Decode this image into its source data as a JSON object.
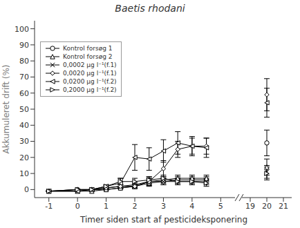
{
  "chart_data": [
    {
      "type": "line",
      "title": "Baetis rhodani",
      "xlabel": "Timer siden start af pesticideksponering",
      "ylabel": "Akkumuleret drift (%)",
      "x": [
        -1,
        0,
        0.5,
        1,
        1.5,
        2,
        2.5,
        3,
        3.5,
        4,
        4.5
      ],
      "xlim": [
        -1.5,
        5.5
      ],
      "xticks": [
        -1,
        0,
        1,
        2,
        3,
        4,
        5
      ],
      "ylim": [
        -5,
        105
      ],
      "yticks": [
        0,
        10,
        20,
        30,
        40,
        50,
        60,
        70,
        80,
        90,
        100
      ],
      "grid": false,
      "legend": "upper left",
      "series": [
        {
          "name": "Kontrol forsøg 1",
          "color": "#000000",
          "marker": "circle",
          "line_style": "solid",
          "values": [
            -1,
            0,
            0,
            0,
            1,
            2,
            4,
            5,
            6,
            6,
            6
          ],
          "errors": [
            0.3,
            0.3,
            0.3,
            0.3,
            0.5,
            1,
            1.5,
            2,
            2,
            2,
            2
          ]
        },
        {
          "name": "Kontrol forsøg 2",
          "color": "#000000",
          "marker": "triangle-up",
          "line_style": "solid",
          "values": [
            -1,
            -1,
            -1,
            0,
            1,
            2,
            5,
            6,
            7,
            7,
            7
          ],
          "errors": [
            0.3,
            0.3,
            0.3,
            0.3,
            0.5,
            1,
            2,
            2,
            2,
            2,
            2
          ]
        },
        {
          "name": "0,0002 µg l⁻¹(f.1)",
          "color": "#000000",
          "marker": "x",
          "line_style": "solid",
          "values": [
            -1,
            -1,
            0,
            1,
            2,
            3,
            5,
            5,
            5,
            5,
            5
          ],
          "errors": [
            0.3,
            0.3,
            0.3,
            0.5,
            1,
            1.5,
            2,
            2,
            2,
            2,
            2
          ]
        },
        {
          "name": "0,0020 µg l⁻¹(f.1)",
          "color": "#000000",
          "marker": "diamond",
          "line_style": "solid",
          "values": [
            -1,
            0,
            0,
            1,
            2,
            2,
            5,
            13,
            25,
            27,
            27
          ],
          "errors": [
            0.3,
            0.3,
            0.3,
            0.5,
            1,
            1.5,
            3,
            5,
            5,
            5,
            5
          ]
        },
        {
          "name": "0,0200 µg l⁻¹(f.2)",
          "color": "#000000",
          "marker": "triangle-left",
          "line_style": "solid",
          "values": [
            -1,
            -1,
            0,
            2,
            4,
            20,
            19,
            24,
            29,
            27,
            26
          ],
          "errors": [
            0.3,
            0.3,
            0.3,
            1,
            3,
            8,
            7,
            7,
            7,
            6,
            6
          ]
        },
        {
          "name": "0,2000 µg l⁻¹(f.2)",
          "color": "#000000",
          "marker": "triangle-right",
          "line_style": "solid",
          "values": [
            -1,
            0,
            0,
            2,
            5,
            5,
            6,
            7,
            5,
            5,
            4
          ],
          "errors": [
            0.3,
            0.3,
            0.3,
            0.5,
            2,
            2,
            2,
            2,
            2,
            2,
            2
          ]
        }
      ]
    },
    {
      "type": "line",
      "x": [
        20
      ],
      "xlim": [
        18.5,
        21.5
      ],
      "xticks": [
        19,
        20,
        21
      ],
      "ylim": [
        -5,
        105
      ],
      "yticks": [
        0,
        10,
        20,
        30,
        40,
        50,
        60,
        70,
        80,
        90,
        100
      ],
      "grid": false,
      "series": [
        {
          "color": "#000000",
          "marker": "circle",
          "line_style": "solid",
          "values": [
            29
          ],
          "errors": [
            8
          ]
        },
        {
          "color": "#000000",
          "marker": "triangle-up",
          "line_style": "solid",
          "values": [
            14
          ],
          "errors": [
            5
          ]
        },
        {
          "color": "#000000",
          "marker": "x",
          "line_style": "solid",
          "values": [
            11
          ],
          "errors": [
            4
          ]
        },
        {
          "color": "#000000",
          "marker": "diamond",
          "line_style": "solid",
          "values": [
            59
          ],
          "errors": [
            10
          ]
        },
        {
          "color": "#000000",
          "marker": "triangle-left",
          "line_style": "solid",
          "values": [
            54
          ],
          "errors": [
            9
          ]
        },
        {
          "color": "#000000",
          "marker": "triangle-right",
          "line_style": "solid",
          "values": [
            10
          ],
          "errors": [
            4
          ]
        }
      ]
    }
  ]
}
